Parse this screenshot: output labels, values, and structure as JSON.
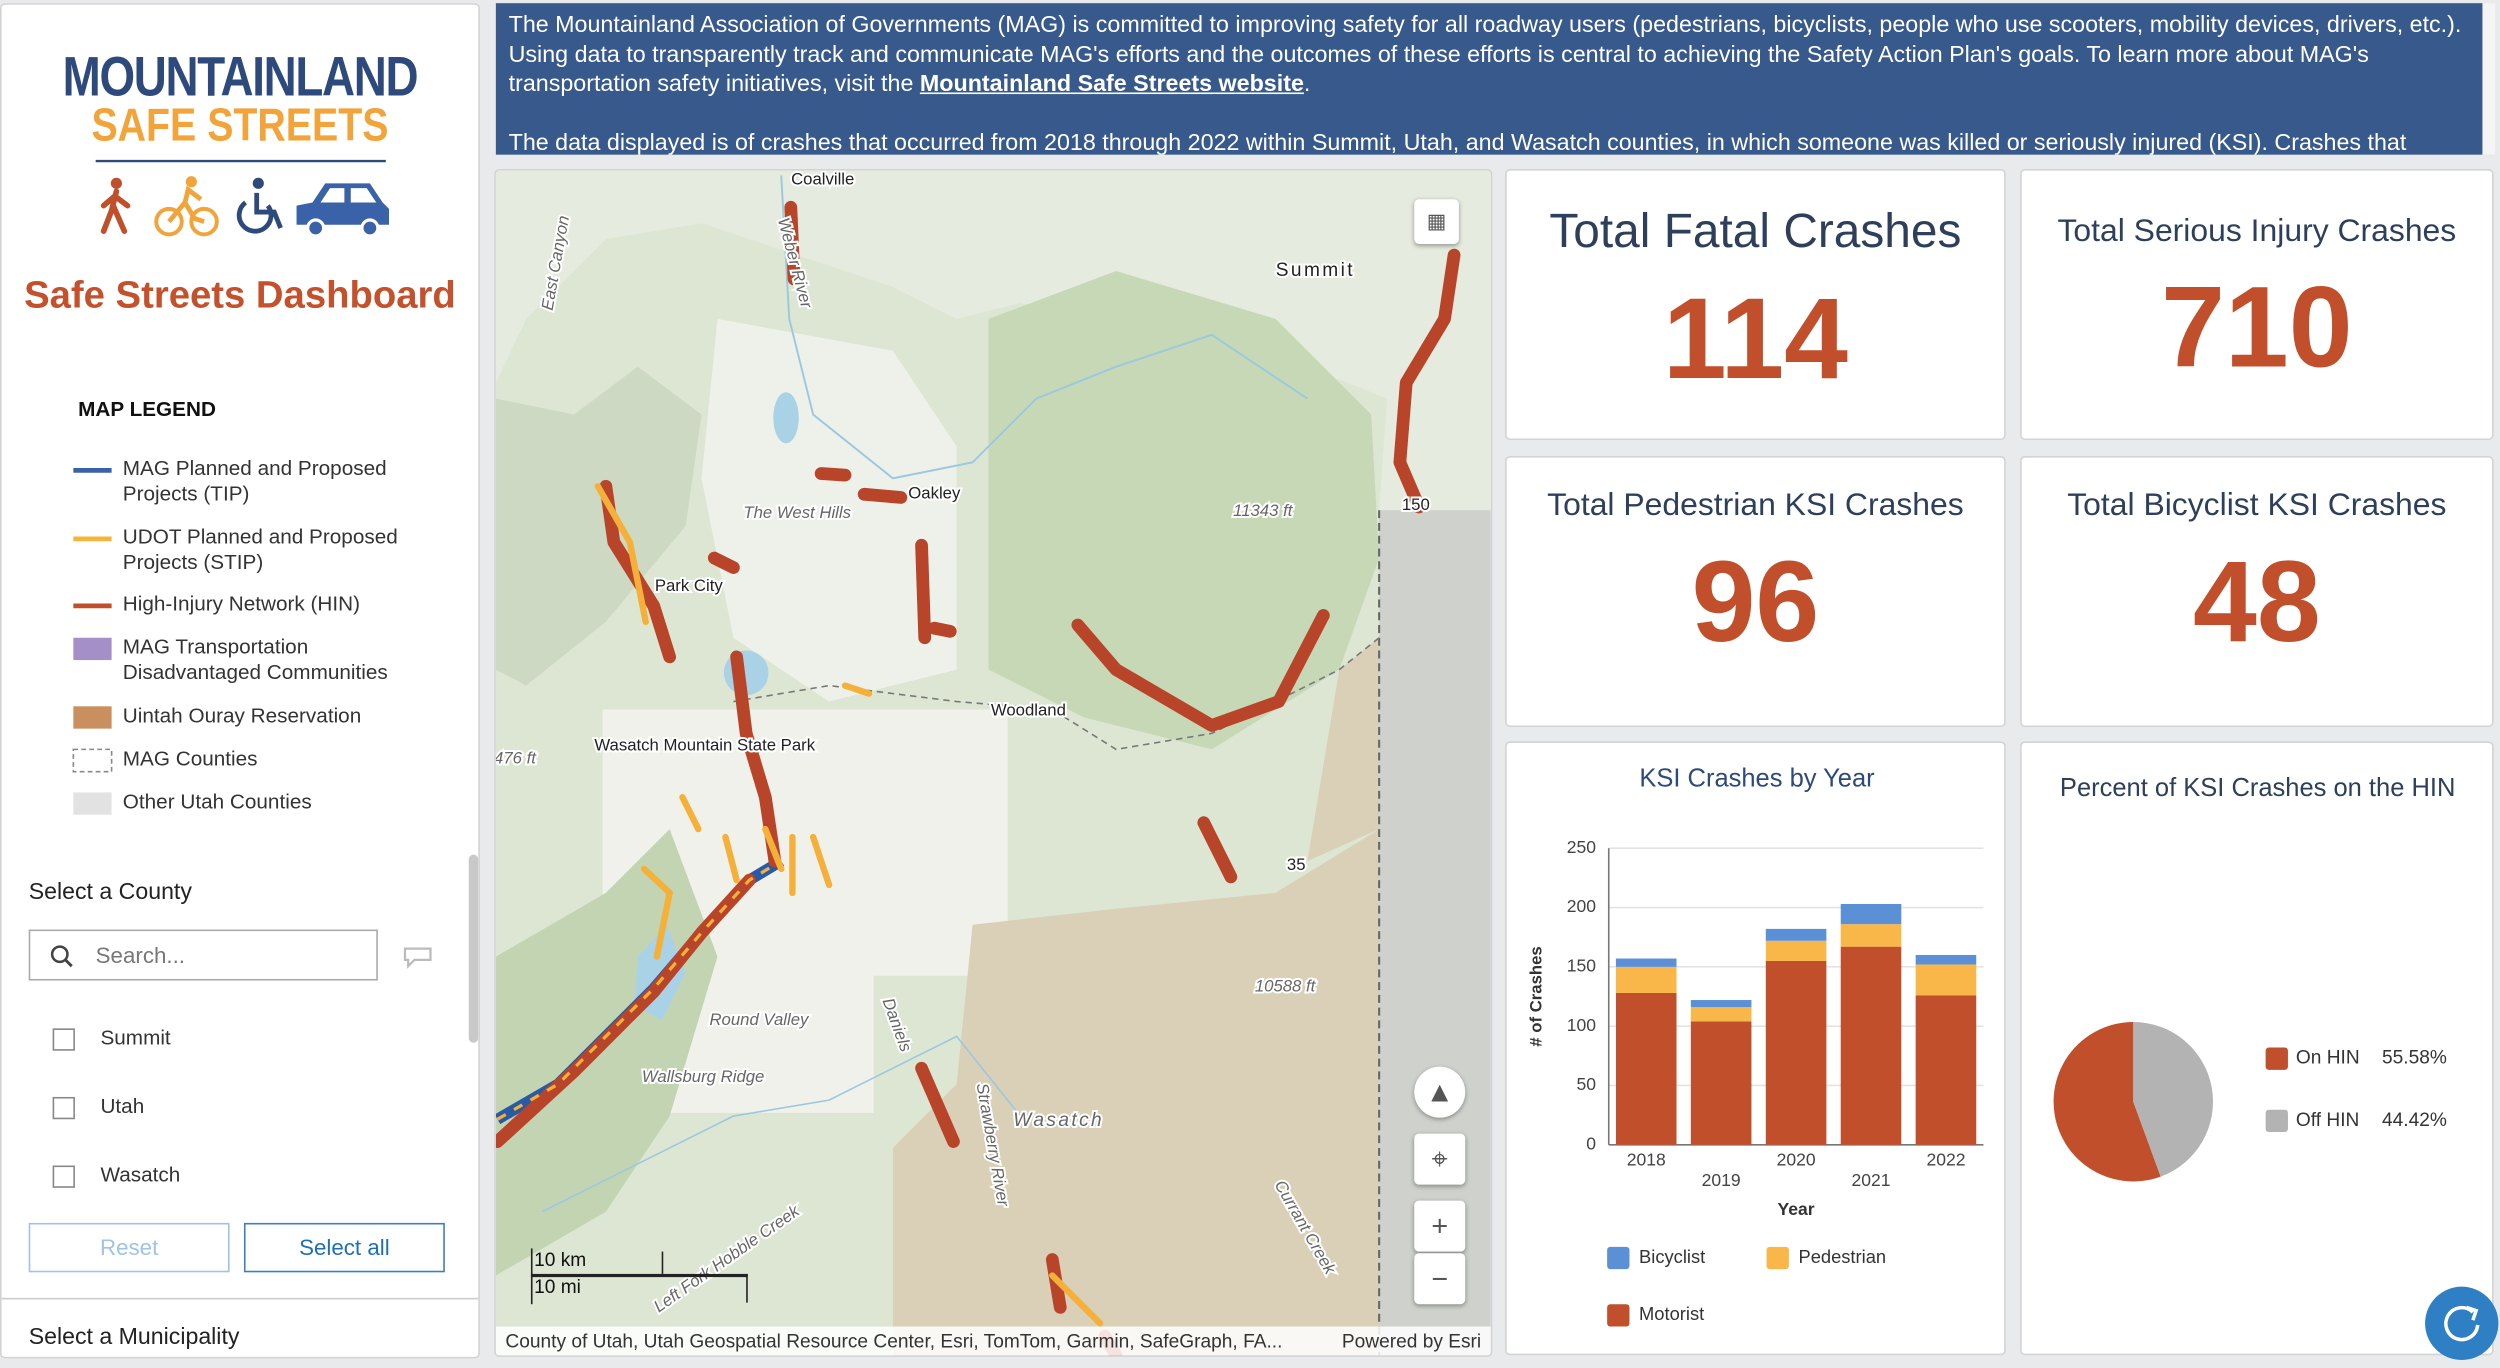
{
  "sidebar": {
    "logo": {
      "line1": "MOUNTAINLAND",
      "line2": "SAFE STREETS"
    },
    "title": "Safe Streets Dashboard",
    "legend": {
      "title": "MAP LEGEND",
      "items": [
        {
          "label": "MAG Planned and Proposed Projects (TIP)",
          "symbol": "line",
          "color": "#3a62a8"
        },
        {
          "label": "UDOT Planned and Proposed Projects (STIP)",
          "symbol": "line",
          "color": "#f7b43c"
        },
        {
          "label": "High-Injury Network (HIN)",
          "symbol": "line",
          "color": "#c24f2c"
        },
        {
          "label": "MAG Transportation Disadvantaged Communities",
          "symbol": "fill",
          "color": "#a58fc8"
        },
        {
          "label": "Uintah Ouray Reservation",
          "symbol": "fill",
          "color": "#c98f5e"
        },
        {
          "label": "MAG Counties",
          "symbol": "dashed",
          "color": "#888888"
        },
        {
          "label": "Other Utah Counties",
          "symbol": "fill",
          "color": "#e2e2e2"
        }
      ]
    },
    "county_filter": {
      "label": "Select a County",
      "search_placeholder": "Search...",
      "options": [
        "Summit",
        "Utah",
        "Wasatch"
      ],
      "reset": "Reset",
      "select_all": "Select all"
    },
    "municipality_label": "Select a Municipality"
  },
  "intro": {
    "paragraph1": "The Mountainland Association of Governments (MAG) is committed to improving safety for all roadway users (pedestrians, bicyclists, people who use scooters, mobility devices, drivers, etc.). Using data to transparently track and communicate MAG's efforts and the outcomes of these efforts is central to achieving the Safety Action Plan's goals. To learn more about MAG's transportation safety initiatives, visit the ",
    "link": "Mountainland Safe Streets website",
    "paragraph1_end": ".",
    "paragraph2": "The data displayed is of crashes that occurred from 2018 through 2022 within Summit, Utah, and Wasatch counties, in which someone was killed or seriously injured (KSI). Crashes that"
  },
  "map": {
    "labels": [
      "Coalville",
      "Summit",
      "The West Hills",
      "Oakley",
      "Park City",
      "Woodland",
      "11343 ft",
      "Wasatch Mountain State Park",
      "476 ft",
      "35",
      "150",
      "10588 ft",
      "Round Valley",
      "Wallsburg Ridge",
      "Wasatch",
      "Weber River",
      "East Canyon",
      "Daniels",
      "Strawberry River",
      "Currant Creek",
      "Left Fork Hobble Creek"
    ],
    "scale": {
      "km": "10 km",
      "mi": "10 mi"
    },
    "attribution": "County of Utah, Utah Geospatial Resource Center, Esri, TomTom, Garmin, SafeGraph, FA...",
    "powered_by": "Powered by Esri"
  },
  "kpis": [
    {
      "title": "Total Fatal Crashes",
      "value": 114
    },
    {
      "title": "Total Serious Injury Crashes",
      "value": 710
    },
    {
      "title": "Total Pedestrian KSI Crashes",
      "value": 96
    },
    {
      "title": "Total Bicyclist KSI Crashes",
      "value": 48
    }
  ],
  "chart_data": [
    {
      "type": "stacked-bar",
      "title": "KSI Crashes by Year",
      "x_label": "Year",
      "y_label": "# of Crashes",
      "categories": [
        "2018",
        "2019",
        "2020",
        "2021",
        "2022"
      ],
      "series": [
        {
          "name": "Bicyclist",
          "color": "#5b8fd6",
          "values": [
            7,
            6,
            10,
            17,
            8
          ]
        },
        {
          "name": "Pedestrian",
          "color": "#f9b649",
          "values": [
            22,
            12,
            17,
            19,
            26
          ]
        },
        {
          "name": "Motorist",
          "color": "#c24f2c",
          "values": [
            128,
            104,
            155,
            167,
            126
          ]
        }
      ],
      "ylim": [
        0,
        250
      ],
      "yticks": [
        0,
        50,
        100,
        150,
        200,
        250
      ],
      "grid": true
    },
    {
      "type": "pie",
      "title": "Percent of KSI Crashes on the HIN",
      "categories": [
        "On HIN",
        "Off HIN"
      ],
      "values": [
        55.58,
        44.42
      ],
      "value_labels": [
        "55.58%",
        "44.42%"
      ],
      "colors": [
        "#c24f2c",
        "#b3b3b3"
      ]
    }
  ]
}
